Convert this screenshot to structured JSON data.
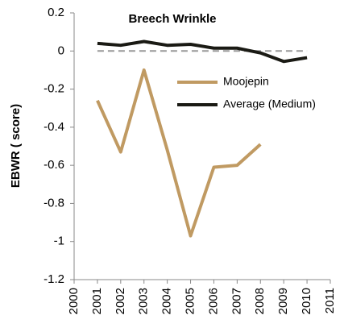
{
  "chart_data": {
    "type": "line",
    "title": "Breech Wrinkle",
    "ylabel": "EBWR ( score)",
    "x": [
      2001,
      2002,
      2003,
      2004,
      2005,
      2006,
      2007,
      2008,
      2009,
      2010
    ],
    "series": [
      {
        "name": "Moojepin",
        "color": "#c09a62",
        "values": [
          -0.26,
          -0.53,
          -0.1,
          -0.52,
          -0.97,
          -0.61,
          -0.6,
          -0.49,
          null,
          null
        ]
      },
      {
        "name": "Average (Medium)",
        "color": "#1a1a14",
        "values": [
          0.04,
          0.03,
          0.05,
          0.03,
          0.035,
          0.015,
          0.015,
          -0.01,
          -0.055,
          -0.035
        ]
      }
    ],
    "hline": 0,
    "xlim": [
      2000,
      2011
    ],
    "xticks": [
      2000,
      2001,
      2002,
      2003,
      2004,
      2005,
      2006,
      2007,
      2008,
      2009,
      2010,
      2011
    ],
    "ylim": [
      -1.2,
      0.2
    ],
    "yticks": [
      0.2,
      0,
      -0.2,
      -0.4,
      -0.6,
      -0.8,
      -1,
      -1.2
    ]
  }
}
